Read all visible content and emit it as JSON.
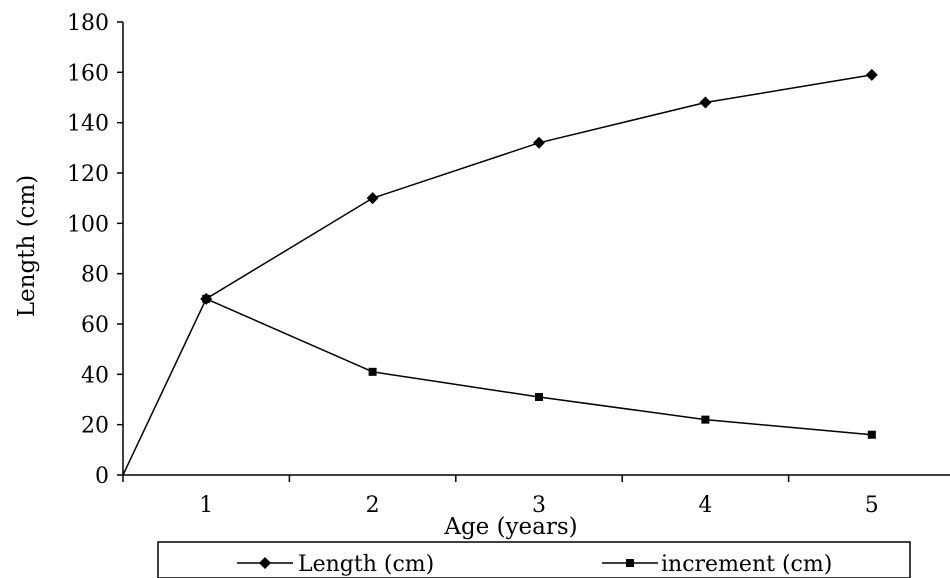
{
  "chart_data": {
    "type": "line",
    "title": "",
    "xlabel": "Age (years)",
    "ylabel": "Length (cm)",
    "x_ticks": [
      "1",
      "2",
      "3",
      "4",
      "5"
    ],
    "y_ticks": [
      "0",
      "20",
      "40",
      "60",
      "80",
      "100",
      "120",
      "140",
      "160",
      "180"
    ],
    "xlim": [
      0.5,
      5.5
    ],
    "ylim": [
      0,
      180
    ],
    "grid": false,
    "legend_position": "bottom",
    "series": [
      {
        "name": "Length (cm)",
        "marker": "diamond",
        "color": "#000000",
        "points": [
          [
            0.5,
            0
          ],
          [
            1,
            70
          ],
          [
            2,
            110
          ],
          [
            3,
            132
          ],
          [
            4,
            148
          ],
          [
            5,
            159
          ]
        ]
      },
      {
        "name": "increment (cm)",
        "marker": "square",
        "color": "#000000",
        "points": [
          [
            1,
            70
          ],
          [
            2,
            41
          ],
          [
            3,
            31
          ],
          [
            4,
            22
          ],
          [
            5,
            16
          ]
        ]
      }
    ]
  }
}
